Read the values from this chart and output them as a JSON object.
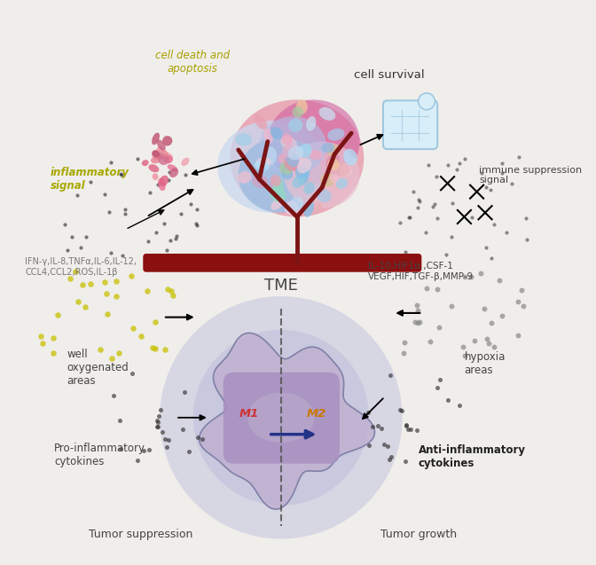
{
  "bg_color": "#f0eeeb",
  "labels": {
    "inflammatory_signal": "inflammatory\nsignal",
    "cell_death": "cell death and\napoptosis",
    "cell_survival": "cell survival",
    "immune_suppression": "immune suppression\nsignal",
    "tme": "TME",
    "cytokines_left": "IFN-γ,IL-8,TNFα,IL-6,IL-12,\nCCL4,CCL2,ROS,IL-1β",
    "cytokines_right": "IL-10,HIF1α ,CSF-1\nVEGF,HIF,TGF-β,MMP-9",
    "well_oxygenated": "well\noxygenated\nareas",
    "hypoxia": "hypoxia\nareas",
    "pro_inflam": "Pro-inflammatory\ncytokines",
    "anti_inflam": "Anti-inflammatory\ncytokines",
    "M1": "M1",
    "M2": "M2",
    "tumor_suppression": "Tumor suppression",
    "tumor_growth": "Tumor growth"
  },
  "colors": {
    "inflammatory_signal_text": "#a8a800",
    "cell_death_text": "#a8a000",
    "tme_text": "#444444",
    "cytokines_left_text": "#777777",
    "cytokines_right_text": "#444444",
    "well_oxygenated_text": "#444444",
    "hypoxia_text": "#444444",
    "pro_inflam_text": "#444444",
    "anti_inflam_text": "#222222",
    "M1_text": "#cc3333",
    "M2_text": "#cc7700",
    "tumor_suppression_text": "#444444",
    "tumor_growth_text": "#444444",
    "immune_suppression_text": "#444444",
    "cell_survival_text": "#333333",
    "dot_dark": "#333333",
    "dot_yellow": "#c8c000",
    "dot_gray": "#888888",
    "blood_vessel": "#8B1010",
    "glow_blue": "#9090cc",
    "macrophage_fill": "#c0b0d0",
    "macrophage_border": "#8080a8",
    "inner_mac": "#a890c0",
    "inner_mac2": "#b8a8cc"
  }
}
